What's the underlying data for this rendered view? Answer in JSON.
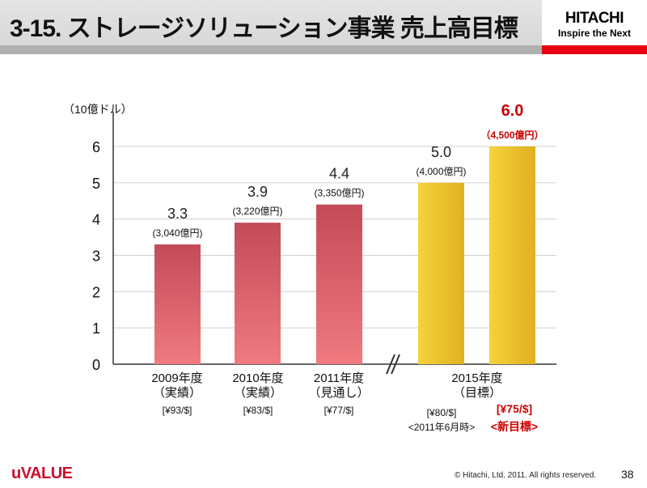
{
  "header": {
    "title": "3-15. ストレージソリューション事業 売上高目標",
    "brand": "HITACHI",
    "tagline": "Inspire the Next"
  },
  "chart_data": {
    "type": "bar",
    "ylabel": "（10億ドル）",
    "ylim": [
      0,
      6
    ],
    "yticks": [
      "0",
      "1",
      "2",
      "3",
      "4",
      "5",
      "6"
    ],
    "grid": true,
    "categories": [
      {
        "lines": [
          "2009年度",
          "（実績）"
        ],
        "rate": "[¥93/$]"
      },
      {
        "lines": [
          "2010年度",
          "（実績）"
        ],
        "rate": "[¥83/$]"
      },
      {
        "lines": [
          "2011年度",
          "（見通し）"
        ],
        "rate": "[¥77/$]"
      },
      {
        "lines": [
          "2015年度",
          "（目標）"
        ],
        "rate": "[¥80/$]",
        "rate_note": "<2011年6月時>",
        "rate2": "[¥75/$]",
        "rate2_note": "<新目標>"
      }
    ],
    "bars": [
      {
        "value": 3.3,
        "label": "3.3",
        "sub": "(3,040億円)",
        "color": "#c9505e"
      },
      {
        "value": 3.9,
        "label": "3.9",
        "sub": "(3,220億円)",
        "color": "#c9505e"
      },
      {
        "value": 4.4,
        "label": "4.4",
        "sub": "(3,350億円)",
        "color": "#c9505e"
      },
      {
        "value": 5.0,
        "label": "5.0",
        "sub": "(4,000億円)",
        "color": "#f0c830"
      },
      {
        "value": 6.0,
        "label": "6.0",
        "sub": "（4,500億円）",
        "color": "#ecc22a",
        "highlight": true
      }
    ],
    "axis_break": true
  },
  "footer": {
    "logo": "uVALUE",
    "copyright": "© Hitachi, Ltd. 2011. All rights reserved.",
    "page": "38"
  },
  "colors": {
    "accent": "#cc0000",
    "brand_red": "#e60012"
  }
}
